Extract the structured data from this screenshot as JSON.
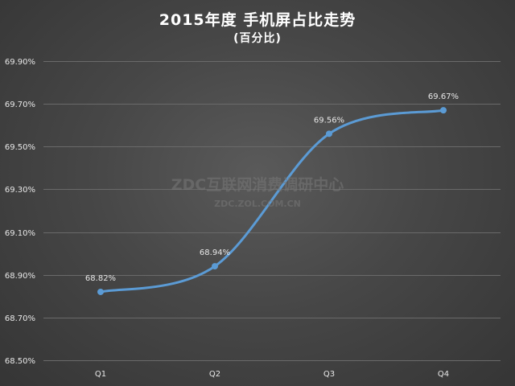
{
  "chart_data": {
    "type": "line",
    "title": "2015年度 手机屏占比走势",
    "subtitle": "(百分比)",
    "categories": [
      "Q1",
      "Q2",
      "Q3",
      "Q4"
    ],
    "series": [
      {
        "values": [
          68.82,
          68.94,
          69.56,
          69.67
        ],
        "labels": [
          "68.82%",
          "68.94%",
          "69.56%",
          "69.67%"
        ],
        "color": "#5b9bd5",
        "smooth": true
      }
    ],
    "ylim": [
      68.5,
      69.9
    ],
    "yticks": [
      68.5,
      68.7,
      68.9,
      69.1,
      69.3,
      69.5,
      69.7,
      69.9
    ],
    "ytick_labels": [
      "68.50%",
      "68.70%",
      "68.90%",
      "69.10%",
      "69.30%",
      "69.50%",
      "69.70%",
      "69.90%"
    ],
    "xlabel": "",
    "ylabel": "",
    "grid": true,
    "legend": "none"
  },
  "watermark": {
    "main": "ZDC互联网消费调研中心",
    "sub": "ZDC.ZOL.COM.CN"
  },
  "colors": {
    "background": "#474747",
    "gridline": "#6a6a6a",
    "text": "#e8e8e8",
    "series": "#5b9bd5"
  }
}
